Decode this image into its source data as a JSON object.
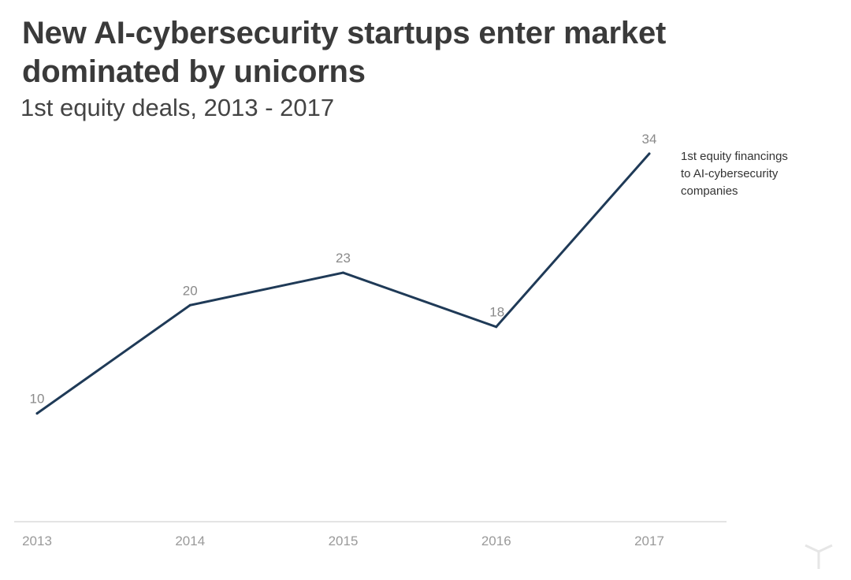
{
  "chart_data": {
    "type": "line",
    "title": "New AI-cybersecurity startups enter market dominated by unicorns",
    "subtitle": "1st equity deals, 2013 - 2017",
    "categories": [
      "2013",
      "2014",
      "2015",
      "2016",
      "2017"
    ],
    "series": [
      {
        "name": "1st equity financings to AI-cybersecurity companies",
        "values": [
          10,
          20,
          23,
          18,
          34
        ]
      }
    ],
    "annotation_lines": [
      "1st equity financings",
      "to  AI-cybersecurity",
      "companies"
    ],
    "xlabel": "",
    "ylabel": "",
    "ylim": [
      0,
      38
    ],
    "grid": false,
    "legend": "inline annotation at right of last point",
    "colors": {
      "line": "#1f3a57",
      "axis": "#dcdcdc",
      "value_labels": "#8a8a8a",
      "tick_labels": "#9a9a9a",
      "title": "#3a3a3a"
    }
  }
}
